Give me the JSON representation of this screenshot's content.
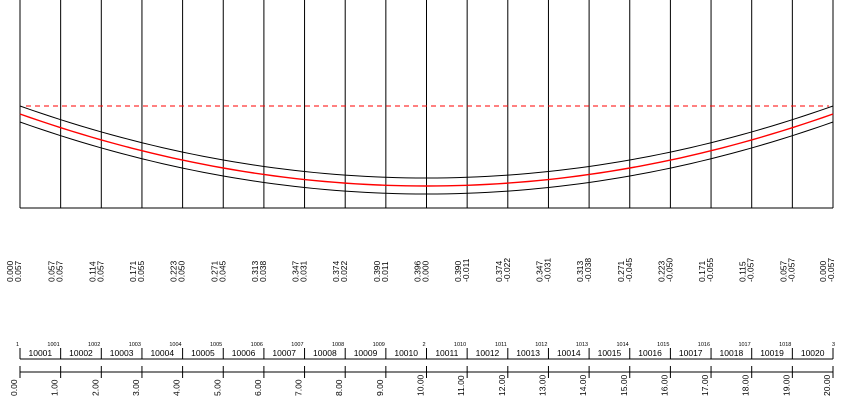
{
  "diagram": {
    "colors": {
      "grid": "#000000",
      "centerline": "#ff0000",
      "reference_line": "#ff0000",
      "offset_lines": "#000000"
    },
    "stations": [
      "0.00",
      "1.00",
      "2.00",
      "3.00",
      "4.00",
      "5.00",
      "6.00",
      "7.00",
      "8.00",
      "9.00",
      "10.00",
      "11.00",
      "12.00",
      "13.00",
      "14.00",
      "15.00",
      "16.00",
      "17.00",
      "18.00",
      "19.00",
      "20.00"
    ],
    "sag_values": [
      "0.000",
      "0.057",
      "0.114",
      "0.171",
      "0.223",
      "0.271",
      "0.313",
      "0.347",
      "0.374",
      "0.390",
      "0.396",
      "0.390",
      "0.374",
      "0.347",
      "0.313",
      "0.271",
      "0.223",
      "0.171",
      "0.115",
      "0.057",
      "0.000"
    ],
    "slope_values": [
      "0.057",
      "0.057",
      "0.057",
      "0.055",
      "0.050",
      "0.045",
      "0.038",
      "0.031",
      "0.022",
      "0.011",
      "0.000",
      "-0.011",
      "-0.022",
      "-0.031",
      "-0.038",
      "-0.045",
      "-0.050",
      "-0.055",
      "-0.057",
      "-0.057",
      "-0.057"
    ],
    "node_labels": [
      "1",
      "1001",
      "1002",
      "1003",
      "1004",
      "1005",
      "1006",
      "1007",
      "1008",
      "1009",
      "2",
      "1010",
      "1011",
      "1012",
      "1013",
      "1014",
      "1015",
      "1016",
      "1017",
      "1018",
      "3"
    ],
    "element_labels": [
      "10001",
      "10002",
      "10003",
      "10004",
      "10005",
      "10006",
      "10007",
      "10008",
      "10009",
      "10010",
      "10011",
      "10012",
      "10013",
      "10014",
      "10015",
      "10016",
      "10017",
      "10018",
      "10019",
      "10020"
    ]
  }
}
